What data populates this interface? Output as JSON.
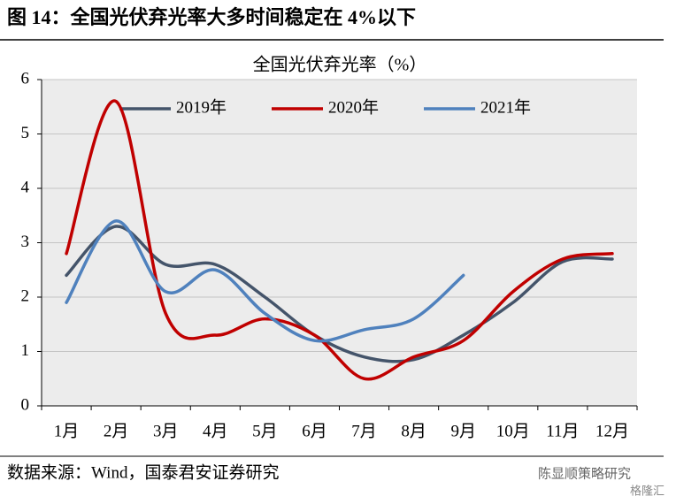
{
  "figure_title": "图 14：全国光伏弃光率大多时间稳定在 4%以下",
  "source": "数据来源：Wind，国泰君安证券研究",
  "watermark": "陈显顺策略研究",
  "watermark2": "格隆汇",
  "chart_data": {
    "type": "line",
    "title": "全国光伏弃光率（%）",
    "categories": [
      "1月",
      "2月",
      "3月",
      "4月",
      "5月",
      "6月",
      "7月",
      "8月",
      "9月",
      "10月",
      "11月",
      "12月"
    ],
    "series": [
      {
        "name": "2019年",
        "color": "#44546a",
        "values": [
          2.4,
          3.3,
          2.6,
          2.6,
          2.0,
          1.3,
          0.9,
          0.85,
          1.3,
          1.9,
          2.65,
          2.7
        ]
      },
      {
        "name": "2020年",
        "color": "#c00000",
        "values": [
          2.8,
          5.6,
          1.7,
          1.3,
          1.6,
          1.3,
          0.5,
          0.9,
          1.2,
          2.1,
          2.7,
          2.8
        ]
      },
      {
        "name": "2021年",
        "color": "#4f81bd",
        "values": [
          1.9,
          3.4,
          2.1,
          2.5,
          1.7,
          1.2,
          1.4,
          1.6,
          2.4,
          null,
          null,
          null
        ]
      }
    ],
    "ylim": [
      0,
      6
    ],
    "yticks": [
      0,
      1,
      2,
      3,
      4,
      5,
      6
    ],
    "grid": true,
    "legend": "top"
  }
}
